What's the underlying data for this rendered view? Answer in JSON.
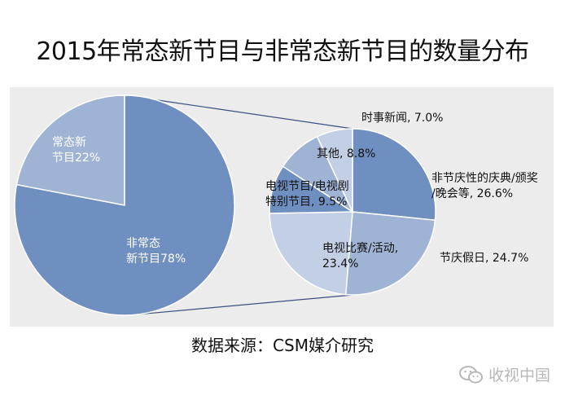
{
  "chart_data": {
    "type": "pie",
    "title": "2015年常态新节目与非常态新节目的数量分布",
    "main_pie": {
      "slices": [
        {
          "label": "常态新\n节目22%",
          "value": 22,
          "color": "#9fb4d4"
        },
        {
          "label": "非常态\n新节目78%",
          "value": 78,
          "color": "#6f8fc0"
        }
      ]
    },
    "detail_pie": {
      "of": "非常态新节目",
      "slices": [
        {
          "label": "非节庆性的庆典/颁奖\n/晚会等, 26.6%",
          "value": 26.6,
          "color": "#6f8fc0"
        },
        {
          "label": "节庆假日, 24.7%",
          "value": 24.7,
          "color": "#9fb4d4"
        },
        {
          "label": "电视比赛/活动,\n23.4%",
          "value": 23.4,
          "color": "#c2cfe4"
        },
        {
          "label": "电视节目/电视剧\n特别节目, 9.5%",
          "value": 9.5,
          "color": "#6f8fc0"
        },
        {
          "label": "其他, 8.8%",
          "value": 8.8,
          "color": "#9fb4d4"
        },
        {
          "label": "时事新闻, 7.0%",
          "value": 7.0,
          "color": "#c2cfe4"
        }
      ]
    }
  },
  "source": "数据来源：CSM媒介研究",
  "watermark": {
    "icon": "wechat-icon",
    "text": "收视中国"
  }
}
